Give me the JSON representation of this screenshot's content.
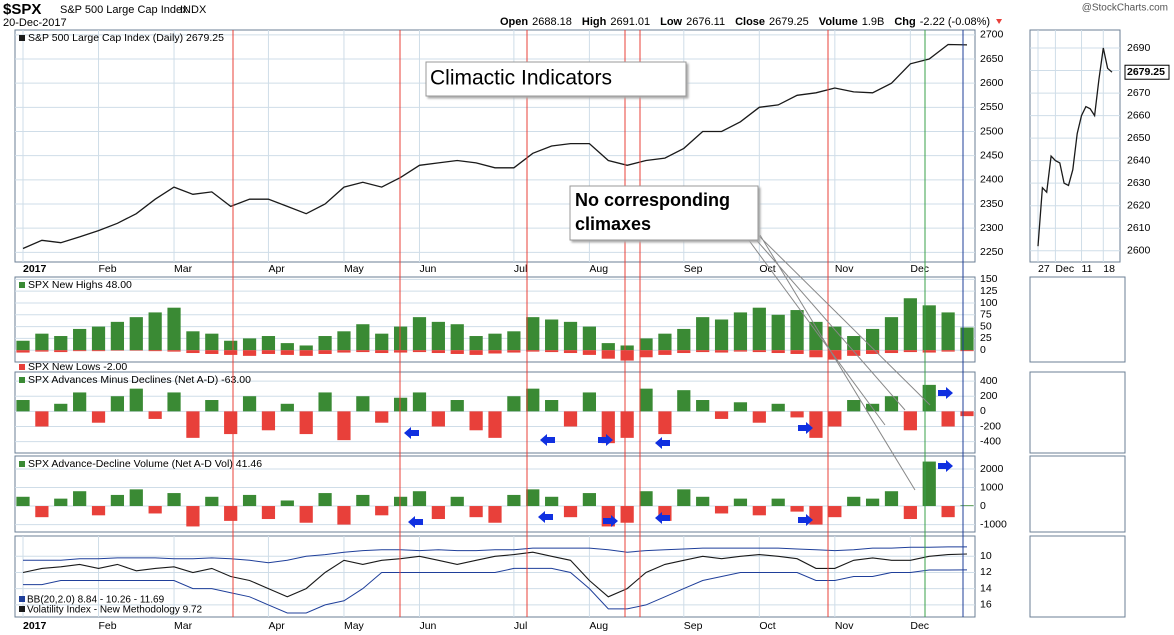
{
  "header": {
    "symbol": "$SPX",
    "name": "S&P 500 Large Cap Index",
    "exchange": "INDX",
    "date": "20-Dec-2017",
    "watermark": "@StockCharts.com",
    "quote": [
      {
        "label": "Open",
        "value": "2688.18"
      },
      {
        "label": "High",
        "value": "2691.01"
      },
      {
        "label": "Low",
        "value": "2676.11"
      },
      {
        "label": "Close",
        "value": "2679.25"
      },
      {
        "label": "Volume",
        "value": "1.9B"
      },
      {
        "label": "Chg",
        "value": "-2.22 (-0.08%)"
      }
    ]
  },
  "chart_data": [
    {
      "type": "line",
      "title": "S&P 500 Large Cap Index (Daily) 2679.25",
      "color": "#1a1a1a",
      "annotations": [
        {
          "lines": [
            "Climactic Indicators"
          ]
        },
        {
          "lines": [
            "No corresponding",
            "climaxes"
          ]
        }
      ],
      "categories": [
        "2017",
        null,
        null,
        null,
        "Feb",
        null,
        null,
        null,
        "Mar",
        null,
        null,
        null,
        null,
        "Apr",
        null,
        null,
        null,
        "May",
        null,
        null,
        null,
        "Jun",
        null,
        null,
        null,
        null,
        "Jul",
        null,
        null,
        null,
        "Aug",
        null,
        null,
        null,
        null,
        "Sep",
        null,
        null,
        null,
        "Oct",
        null,
        null,
        null,
        "Nov",
        null,
        null,
        null,
        "Dec",
        null,
        null,
        null
      ],
      "values": [
        2258,
        2275,
        2270,
        2282,
        2295,
        2310,
        2330,
        2360,
        2385,
        2370,
        2375,
        2345,
        2360,
        2360,
        2345,
        2330,
        2350,
        2385,
        2395,
        2385,
        2405,
        2430,
        2435,
        2440,
        2435,
        2425,
        2425,
        2455,
        2470,
        2475,
        2475,
        2440,
        2430,
        2440,
        2445,
        2465,
        2500,
        2500,
        2520,
        2550,
        2555,
        2575,
        2580,
        2590,
        2582,
        2580,
        2600,
        2640,
        2650,
        2680,
        2679.25
      ],
      "ylim": [
        2230,
        2710
      ],
      "yticks": [
        2250,
        2300,
        2350,
        2400,
        2450,
        2500,
        2550,
        2600,
        2650,
        2700
      ],
      "grid": true
    },
    {
      "type": "bar",
      "colors": {
        "positive": "#3a8a34",
        "negative": "#e8403a"
      },
      "series": [
        {
          "name": "SPX New Highs 48.00",
          "values": [
            20,
            35,
            30,
            45,
            50,
            60,
            70,
            80,
            90,
            40,
            35,
            20,
            25,
            30,
            15,
            10,
            30,
            40,
            55,
            35,
            50,
            70,
            60,
            55,
            30,
            35,
            40,
            70,
            65,
            60,
            50,
            15,
            10,
            25,
            35,
            45,
            70,
            65,
            80,
            90,
            75,
            85,
            60,
            50,
            30,
            45,
            70,
            110,
            95,
            80,
            48
          ]
        },
        {
          "name": "SPX New Lows -2.00",
          "values": [
            -5,
            -3,
            -4,
            -2,
            -2,
            -1,
            -1,
            -2,
            -3,
            -6,
            -8,
            -10,
            -12,
            -8,
            -10,
            -12,
            -8,
            -5,
            -4,
            -6,
            -5,
            -4,
            -6,
            -8,
            -10,
            -7,
            -5,
            -3,
            -4,
            -6,
            -10,
            -18,
            -22,
            -15,
            -10,
            -6,
            -4,
            -5,
            -3,
            -4,
            -6,
            -8,
            -15,
            -20,
            -12,
            -8,
            -6,
            -4,
            -5,
            -3,
            -2
          ]
        }
      ],
      "ylim": [
        -25,
        155
      ],
      "yticks": [
        0,
        25,
        50,
        75,
        100,
        125,
        150
      ],
      "grid": true
    },
    {
      "type": "bar",
      "title": "SPX Advances Minus Declines (Net A-D) -63.00",
      "colors": {
        "positive": "#3a8a34",
        "negative": "#e8403a"
      },
      "values": [
        150,
        -200,
        100,
        250,
        -150,
        200,
        300,
        -100,
        250,
        -350,
        150,
        -300,
        200,
        -250,
        100,
        -300,
        250,
        -380,
        200,
        -150,
        180,
        250,
        -200,
        150,
        -250,
        -350,
        200,
        300,
        150,
        -200,
        250,
        -420,
        -350,
        300,
        -300,
        280,
        150,
        -100,
        120,
        -150,
        100,
        -80,
        -350,
        -200,
        150,
        100,
        200,
        -250,
        350,
        -200,
        -63
      ],
      "ylim": [
        -550,
        520
      ],
      "yticks": [
        -400,
        -200,
        0,
        200,
        400
      ],
      "grid": true
    },
    {
      "type": "bar",
      "title": "SPX Advance-Decline Volume (Net A-D Vol) 41.46",
      "colors": {
        "positive": "#3a8a34",
        "negative": "#e8403a"
      },
      "values": [
        500,
        -600,
        400,
        800,
        -500,
        600,
        900,
        -400,
        700,
        -1100,
        500,
        -800,
        600,
        -700,
        300,
        -900,
        700,
        -1000,
        600,
        -500,
        500,
        800,
        -700,
        500,
        -600,
        -900,
        600,
        900,
        500,
        -600,
        700,
        -1100,
        -900,
        800,
        -800,
        900,
        500,
        -400,
        400,
        -500,
        400,
        -300,
        -1000,
        -600,
        500,
        400,
        800,
        -700,
        2400,
        -600,
        41.46
      ],
      "ylim": [
        -1400,
        2700
      ],
      "yticks": [
        -1000,
        0,
        1000,
        2000
      ],
      "grid": true
    },
    {
      "type": "line",
      "invert": true,
      "color": "#1a1a1a",
      "categories": [
        "2017",
        null,
        null,
        null,
        "Feb",
        null,
        null,
        null,
        "Mar",
        null,
        null,
        null,
        null,
        "Apr",
        null,
        null,
        null,
        "May",
        null,
        null,
        null,
        "Jun",
        null,
        null,
        null,
        null,
        "Jul",
        null,
        null,
        null,
        "Aug",
        null,
        null,
        null,
        null,
        "Sep",
        null,
        null,
        null,
        "Oct",
        null,
        null,
        null,
        "Nov",
        null,
        null,
        null,
        "Dec",
        null,
        null,
        null
      ],
      "series": [
        {
          "name": "Volatility Index - New Methodology 9.72",
          "values": [
            12,
            11.5,
            11.3,
            11,
            11.5,
            11,
            11.8,
            11.5,
            11.3,
            12,
            11.5,
            12.5,
            13,
            14,
            15,
            14,
            12,
            10.5,
            11,
            10.5,
            10.3,
            10,
            10.5,
            11,
            10.5,
            10,
            9.8,
            9.5,
            10,
            10.5,
            13,
            15,
            14,
            12,
            11,
            10.5,
            10,
            10.3,
            10,
            9.8,
            10,
            10.3,
            11.5,
            11.5,
            10.5,
            10.2,
            10.5,
            10.5,
            10,
            9.8,
            9.72
          ]
        }
      ],
      "bands": {
        "name": "BB(20,2.0) 8.84 - 10.26 - 11.69",
        "color": "#1f3f9a",
        "upper": [
          13.5,
          13.5,
          13,
          13,
          13,
          13,
          13,
          13,
          13,
          14,
          14,
          14.5,
          15,
          16,
          17,
          17,
          16,
          15.5,
          14,
          12,
          12,
          12,
          12,
          12,
          12,
          12,
          11.5,
          11.5,
          11.5,
          12,
          14,
          16.5,
          16.5,
          16,
          15,
          14,
          13,
          12.5,
          12,
          12,
          12,
          12,
          13,
          13,
          12.5,
          12.5,
          12,
          12,
          11.7,
          11.7,
          11.69
        ],
        "lower": [
          10.5,
          10.5,
          10.5,
          10.3,
          10.3,
          10.2,
          10.2,
          10.2,
          10.3,
          10.3,
          10.2,
          10.3,
          10.5,
          10.8,
          10.5,
          10,
          9.8,
          9.5,
          9.3,
          9.2,
          9.2,
          9.3,
          9.2,
          9.3,
          9.3,
          9.2,
          9.2,
          9,
          9,
          9,
          9,
          9.2,
          9.5,
          9.3,
          9.2,
          9.1,
          9,
          9,
          9,
          9,
          9,
          9.1,
          9.2,
          9.3,
          9.2,
          9,
          9,
          8.9,
          8.9,
          8.84,
          8.84
        ]
      },
      "ylim": [
        7.5,
        17.5
      ],
      "yticks": [
        10,
        12,
        14,
        16
      ],
      "grid": true
    },
    {
      "type": "line",
      "color": "#1a1a1a",
      "value_label": "2679.25",
      "categories": [
        "27",
        null,
        null,
        null,
        "Dec",
        null,
        null,
        null,
        null,
        null,
        "11",
        null,
        null,
        null,
        null,
        "18",
        null,
        null
      ],
      "values": [
        2602,
        2628,
        2626,
        2642,
        2640,
        2639,
        2630,
        2629,
        2636,
        2652,
        2660,
        2664,
        2663,
        2660,
        2676,
        2690,
        2681,
        2679.25
      ],
      "ylim": [
        2595,
        2698
      ],
      "yticks": [
        2600,
        2610,
        2620,
        2630,
        2640,
        2650,
        2660,
        2670,
        2680,
        2690
      ],
      "grid": true
    }
  ]
}
